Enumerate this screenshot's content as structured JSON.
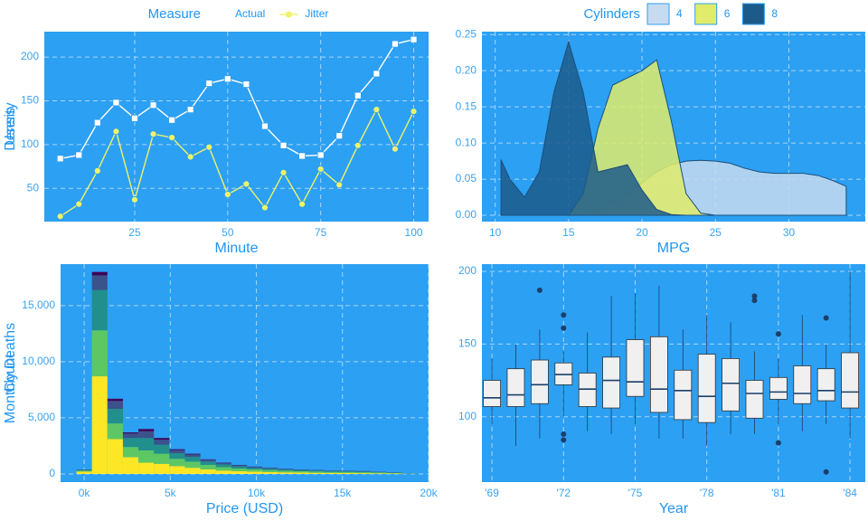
{
  "chart_data": [
    {
      "type": "line",
      "x_label": "Minute",
      "y_label": "Users",
      "legend_title": "Measure",
      "x": [
        5,
        10,
        15,
        20,
        25,
        30,
        35,
        40,
        45,
        50,
        55,
        60,
        65,
        70,
        75,
        80,
        85,
        90,
        95,
        100
      ],
      "series": [
        {
          "name": "Actual",
          "color": "#ffffff",
          "marker": "square",
          "values": [
            84,
            88,
            125,
            148,
            130,
            145,
            128,
            140,
            170,
            175,
            169,
            121,
            99,
            87,
            88,
            110,
            156,
            181,
            215,
            220
          ]
        },
        {
          "name": "Jitter",
          "color": "#eef36a",
          "marker": "circle",
          "values": [
            18,
            32,
            70,
            115,
            37,
            112,
            108,
            86,
            97,
            43,
            55,
            28,
            68,
            32,
            72,
            54,
            99,
            140,
            95,
            138
          ]
        }
      ],
      "xlim": [
        0.7,
        104
      ],
      "ylim": [
        12,
        229
      ],
      "xticks": [
        25,
        50,
        75,
        100
      ],
      "yticks": [
        50,
        100,
        150,
        200
      ],
      "grid": true
    },
    {
      "type": "area",
      "x_label": "MPG",
      "y_label": "Density",
      "legend_title": "Cylinders",
      "x": [
        10.4,
        11,
        12,
        13,
        14,
        15,
        16,
        17,
        18,
        19,
        20,
        21,
        22,
        23,
        24,
        25,
        26,
        27,
        28,
        29,
        30,
        31,
        32,
        33,
        33.9
      ],
      "series": [
        {
          "name": "4",
          "color": "#c6dbef",
          "values": [
            0,
            0,
            0,
            0,
            0,
            0,
            0,
            0.005,
            0.015,
            0.03,
            0.045,
            0.06,
            0.07,
            0.075,
            0.076,
            0.075,
            0.072,
            0.065,
            0.06,
            0.058,
            0.058,
            0.058,
            0.055,
            0.048,
            0.04
          ]
        },
        {
          "name": "6",
          "color": "#e0ec6a",
          "values": [
            0,
            0,
            0,
            0,
            0,
            0,
            0.03,
            0.12,
            0.18,
            0.19,
            0.2,
            0.215,
            0.13,
            0.03,
            0.003,
            0,
            0,
            0,
            0,
            0,
            0,
            0,
            0,
            0,
            0
          ]
        },
        {
          "name": "8",
          "color": "#1c5a8a",
          "values": [
            0.077,
            0.05,
            0.025,
            0.06,
            0.17,
            0.24,
            0.17,
            0.06,
            0.065,
            0.07,
            0.035,
            0.008,
            0.001,
            0,
            0,
            0,
            0,
            0,
            0,
            0,
            0,
            0,
            0,
            0,
            0
          ]
        }
      ],
      "xlim": [
        9.1,
        35.2
      ],
      "ylim": [
        -0.0087,
        0.254
      ],
      "xticks": [
        10,
        15,
        20,
        25,
        30
      ],
      "yticks": [
        {
          "value": 0,
          "label": "0.00"
        },
        0.05,
        {
          "value": 0.1,
          "label": "0.10"
        },
        0.15,
        {
          "value": 0.2,
          "label": "0.20"
        },
        0.25
      ],
      "grid": true
    },
    {
      "type": "histogram",
      "x_label": "Price (USD)",
      "y_label": "Count",
      "bins": [
        -450,
        450,
        1350,
        2250,
        3150,
        4050,
        4950,
        5850,
        6750,
        7650,
        8550,
        9450,
        10350,
        11250,
        12150,
        13050,
        13950,
        14850,
        15750,
        16650,
        17550,
        18450,
        19350
      ],
      "series": [
        {
          "color": "#fde725",
          "values": [
            200,
            8700,
            3100,
            1500,
            1000,
            900,
            700,
            550,
            400,
            300,
            240,
            200,
            170,
            140,
            120,
            100,
            90,
            80,
            70,
            60,
            40,
            15
          ]
        },
        {
          "color": "#5dc863",
          "values": [
            100,
            4100,
            1400,
            900,
            1100,
            900,
            650,
            550,
            400,
            300,
            240,
            200,
            170,
            140,
            120,
            110,
            90,
            90,
            80,
            60,
            50,
            15
          ]
        },
        {
          "color": "#21908c",
          "values": [
            60,
            3600,
            1300,
            800,
            1100,
            800,
            500,
            420,
            300,
            250,
            200,
            150,
            130,
            100,
            100,
            90,
            80,
            70,
            60,
            50,
            40,
            12
          ]
        },
        {
          "color": "#3b528b",
          "values": [
            30,
            1300,
            700,
            400,
            600,
            450,
            280,
            220,
            160,
            120,
            100,
            80,
            65,
            55,
            50,
            40,
            30,
            30,
            30,
            25,
            15,
            6
          ]
        },
        {
          "color": "#440154",
          "values": [
            10,
            300,
            200,
            100,
            200,
            150,
            70,
            60,
            40,
            30,
            20,
            20,
            15,
            15,
            10,
            10,
            10,
            10,
            10,
            5,
            5,
            2
          ]
        }
      ],
      "xlim": [
        -1370,
        20000
      ],
      "ylim": [
        -730,
        18700
      ],
      "xticks": [
        {
          "value": 0,
          "label": "0k"
        },
        {
          "value": 5000,
          "label": "5k"
        },
        {
          "value": 10000,
          "label": "10k"
        },
        {
          "value": 15000,
          "label": "15k"
        },
        {
          "value": 20000,
          "label": "20k"
        }
      ],
      "yticks": [
        0,
        {
          "value": 5000,
          "label": "5,000"
        },
        {
          "value": 10000,
          "label": "10,000"
        },
        {
          "value": 15000,
          "label": "15,000"
        }
      ],
      "grid": true
    },
    {
      "type": "box",
      "x_label": "Year",
      "y_label": "Monthly Deaths",
      "color": "#f0f0f0",
      "outlier_color": "#1b3f6b",
      "x": [
        1969,
        1970,
        1971,
        1972,
        1973,
        1974,
        1975,
        1976,
        1977,
        1978,
        1979,
        1980,
        1981,
        1982,
        1983,
        1984
      ],
      "whislo": [
        95,
        80,
        85,
        100,
        90,
        88,
        95,
        85,
        85,
        80,
        88,
        88,
        95,
        90,
        95,
        85
      ],
      "q1": [
        107,
        107,
        109,
        122,
        107,
        106,
        114,
        103,
        98,
        96,
        104,
        99,
        112,
        109,
        111,
        106
      ],
      "median": [
        113,
        115,
        122,
        129,
        119,
        125,
        124,
        119,
        118,
        114,
        123,
        116,
        117,
        116,
        118,
        117
      ],
      "q3": [
        125,
        133,
        139,
        137,
        130,
        141,
        153,
        155,
        132,
        143,
        140,
        125,
        127,
        135,
        133,
        144
      ],
      "whishi": [
        140,
        150,
        160,
        145,
        158,
        183,
        185,
        190,
        160,
        170,
        165,
        145,
        140,
        170,
        150,
        200
      ],
      "outliers": [
        [],
        [],
        [
          187
        ],
        [
          170,
          161,
          88,
          84
        ],
        [],
        [],
        [],
        [],
        [],
        [],
        [],
        [
          183,
          180
        ],
        [
          157,
          82
        ],
        [],
        [
          168,
          62
        ],
        []
      ],
      "xlim": [
        1968.58,
        1984.64
      ],
      "ylim": [
        55,
        205
      ],
      "xticks": [
        {
          "value": 1969,
          "label": "'69"
        },
        {
          "value": 1972,
          "label": "'72"
        },
        {
          "value": 1975,
          "label": "'75"
        },
        {
          "value": 1978,
          "label": "'78"
        },
        {
          "value": 1981,
          "label": "'81"
        },
        {
          "value": 1984,
          "label": "'84"
        }
      ],
      "yticks": [
        100,
        150,
        200
      ],
      "grid": true
    }
  ]
}
